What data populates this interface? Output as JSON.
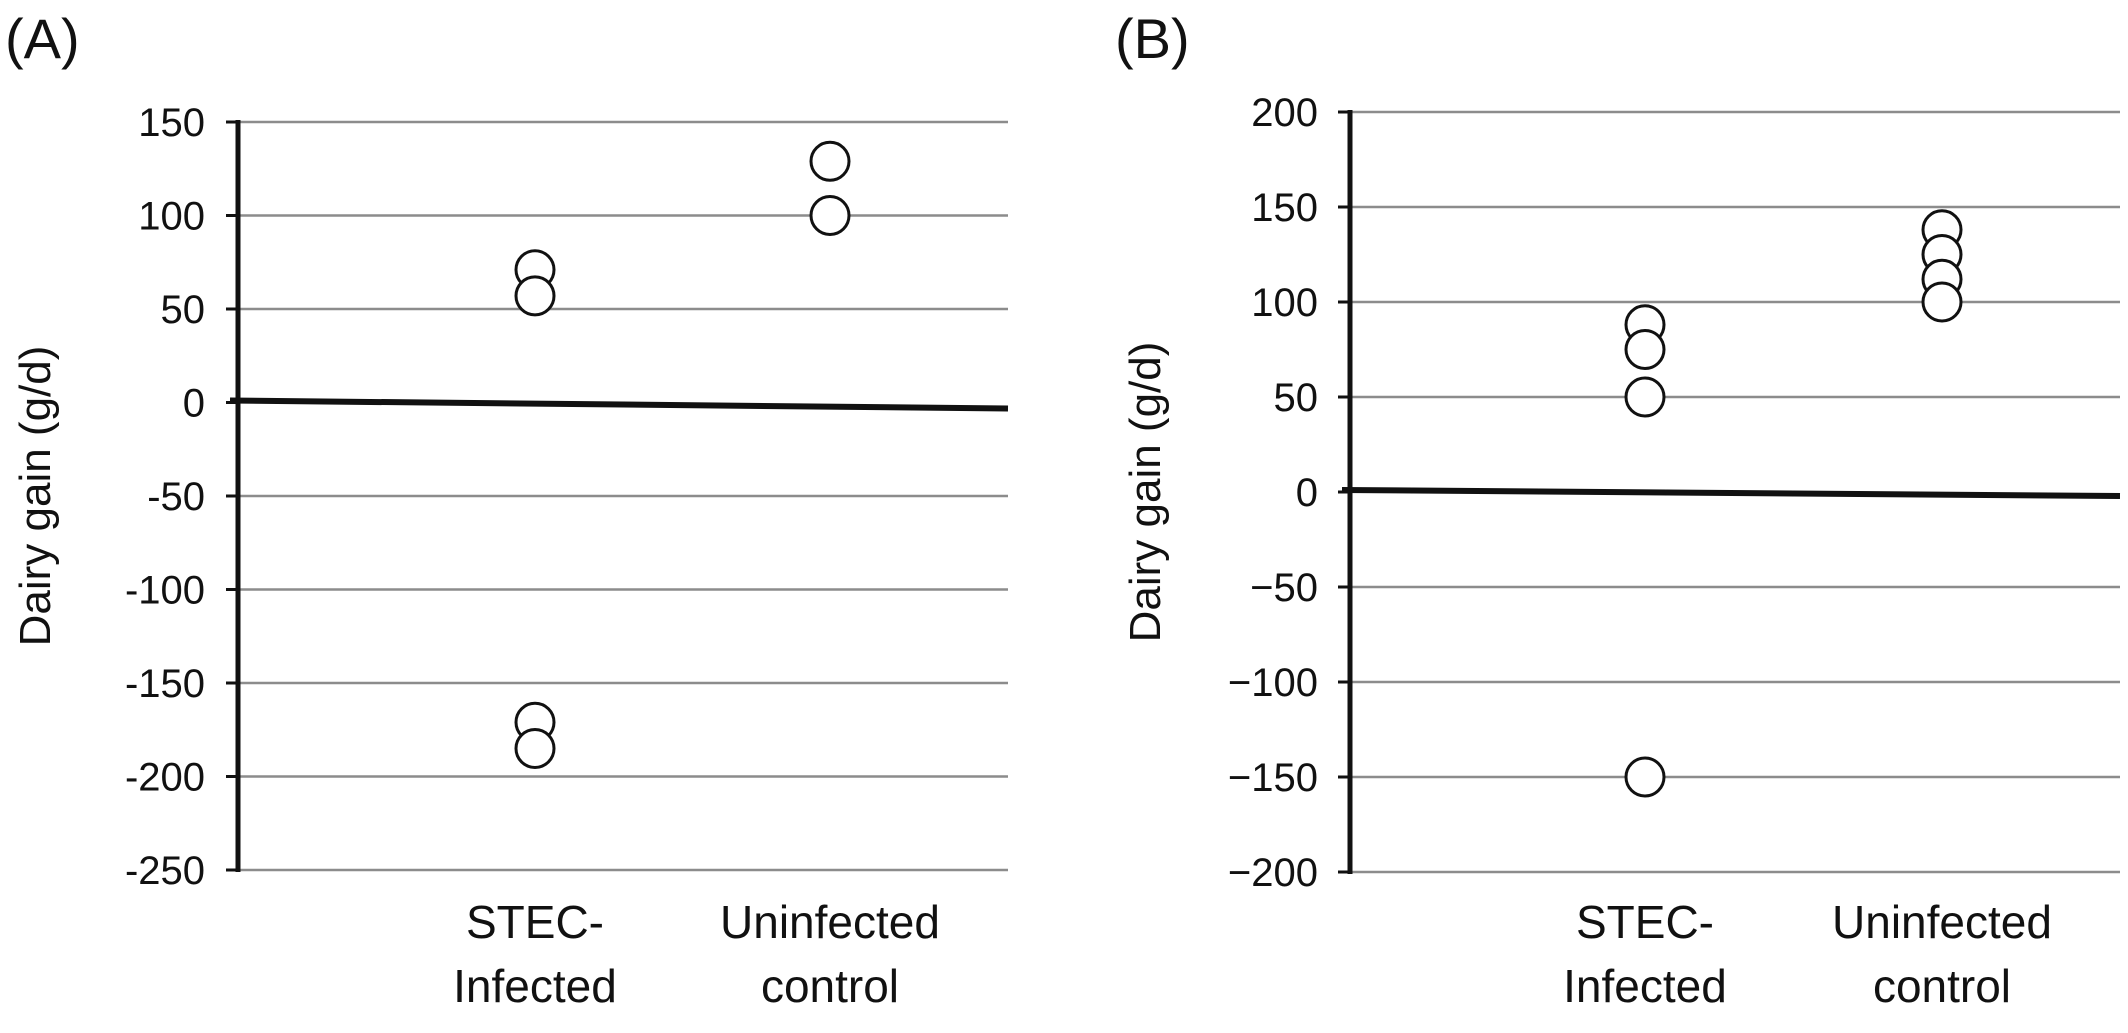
{
  "chart_data": [
    {
      "type": "scatter",
      "panel_label": "(A)",
      "ylabel": "Dairy gain (g/d)",
      "ylim": [
        -250,
        150
      ],
      "yticks": [
        150,
        100,
        50,
        0,
        -50,
        -100,
        -150,
        -200,
        -250
      ],
      "ytick_labels": [
        "150",
        "100",
        "50",
        "0",
        "-50",
        "-100",
        "-150",
        "-200",
        "-250"
      ],
      "categories": [
        {
          "lines": [
            "STEC-",
            "Infected"
          ],
          "values": [
            71,
            57,
            -171,
            -185
          ]
        },
        {
          "lines": [
            "Uninfected",
            "control"
          ],
          "values": [
            129,
            100
          ]
        }
      ],
      "grid": true,
      "marker": "open-circle",
      "reference_line": 0
    },
    {
      "type": "scatter",
      "panel_label": "(B)",
      "ylabel": "Dairy gain (g/d)",
      "ylim": [
        -200,
        200
      ],
      "yticks": [
        200,
        150,
        100,
        50,
        0,
        -50,
        -100,
        -150,
        -200
      ],
      "ytick_labels": [
        "200",
        "150",
        "100",
        "50",
        "0",
        "−50",
        "−100",
        "−150",
        "−200"
      ],
      "categories": [
        {
          "lines": [
            "STEC-",
            "Infected"
          ],
          "values": [
            88,
            75,
            50,
            -150
          ]
        },
        {
          "lines": [
            "Uninfected",
            "control"
          ],
          "values": [
            138,
            125,
            112,
            100
          ]
        }
      ],
      "grid": true,
      "marker": "open-circle",
      "reference_line": 0
    }
  ]
}
